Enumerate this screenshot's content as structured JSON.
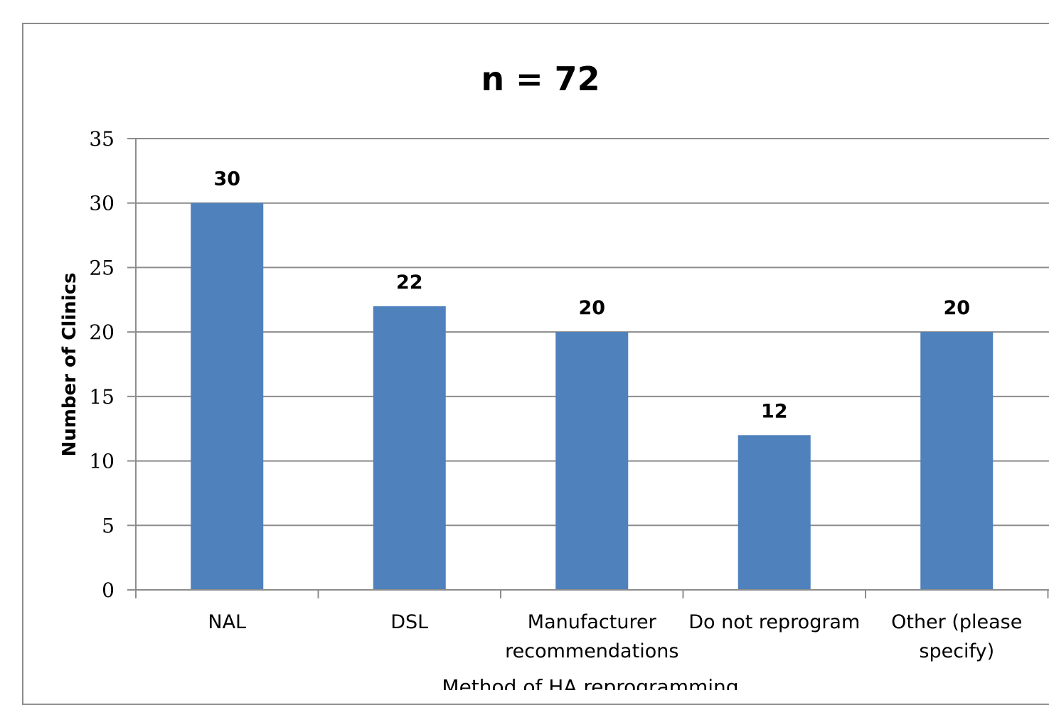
{
  "chart_data": {
    "type": "bar",
    "title": "n = 72",
    "xlabel": "Method of HA reprogramming",
    "ylabel": "Number of Clinics",
    "categories": [
      [
        "NAL"
      ],
      [
        "DSL"
      ],
      [
        "Manufacturer",
        "recommendations"
      ],
      [
        "Do not reprogram"
      ],
      [
        "Other (please",
        "specify)"
      ]
    ],
    "values": [
      30,
      22,
      20,
      12,
      20
    ],
    "data_labels": [
      "30",
      "22",
      "20",
      "12",
      "20"
    ],
    "ylim": [
      0,
      35
    ],
    "yticks": [
      0,
      5,
      10,
      15,
      20,
      25,
      30,
      35
    ],
    "grid": true,
    "legend": "none",
    "colors": {
      "bar": "#4f81bd",
      "grid": "#8c8c8c",
      "axis": "#8c8c8c"
    }
  }
}
